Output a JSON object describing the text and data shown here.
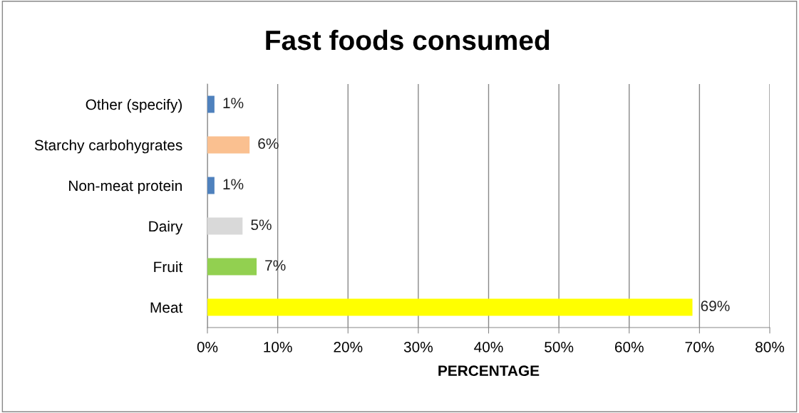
{
  "chart_data": {
    "type": "bar",
    "orientation": "horizontal",
    "title": "Fast foods consumed",
    "xlabel": "PERCENTAGE",
    "categories": [
      "Other (specify)",
      "Starchy carbohygrates",
      "Non-meat protein",
      "Dairy",
      "Fruit",
      "Meat"
    ],
    "values": [
      1,
      6,
      1,
      5,
      7,
      69
    ],
    "colors": [
      "#4f81bd",
      "#fac090",
      "#4f81bd",
      "#d9d9d9",
      "#92d050",
      "#ffff00"
    ],
    "value_labels": [
      "1%",
      "6%",
      "1%",
      "5%",
      "7%",
      "69%"
    ],
    "xlim": [
      0,
      80
    ],
    "xticks": [
      {
        "value": 0,
        "label": "0%"
      },
      {
        "value": 10,
        "label": "10%"
      },
      {
        "value": 20,
        "label": "20%"
      },
      {
        "value": 30,
        "label": "30%"
      },
      {
        "value": 40,
        "label": "40%"
      },
      {
        "value": 50,
        "label": "50%"
      },
      {
        "value": 60,
        "label": "60%"
      },
      {
        "value": 70,
        "label": "70%"
      },
      {
        "value": 80,
        "label": "80%"
      }
    ],
    "grid": "x",
    "legend": false
  }
}
